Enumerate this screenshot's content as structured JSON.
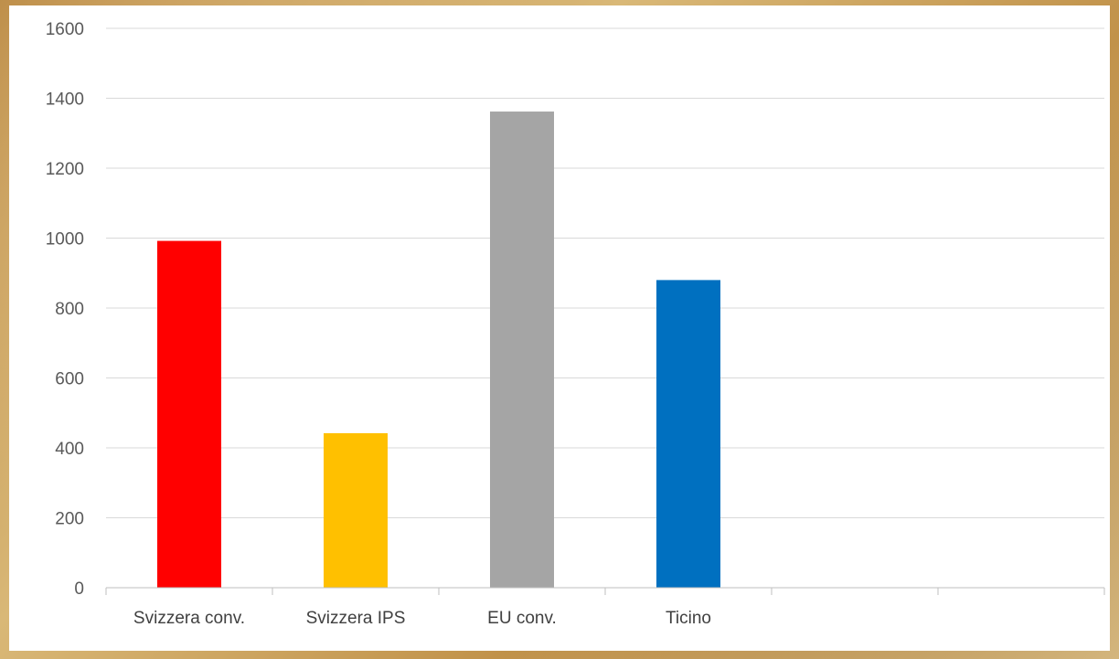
{
  "chart_data": {
    "type": "bar",
    "categories": [
      "Svizzera conv.",
      "Svizzera IPS",
      "EU conv.",
      "Ticino",
      "",
      ""
    ],
    "values": [
      992,
      442,
      1362,
      880,
      null,
      null
    ],
    "colors": [
      "#ff0000",
      "#ffc000",
      "#a5a5a5",
      "#0070c0"
    ],
    "ylim": [
      0,
      1600
    ],
    "yticks": [
      "0",
      "200",
      "400",
      "600",
      "800",
      "1000",
      "1200",
      "1400",
      "1600"
    ],
    "grid": true,
    "legend": "none"
  }
}
